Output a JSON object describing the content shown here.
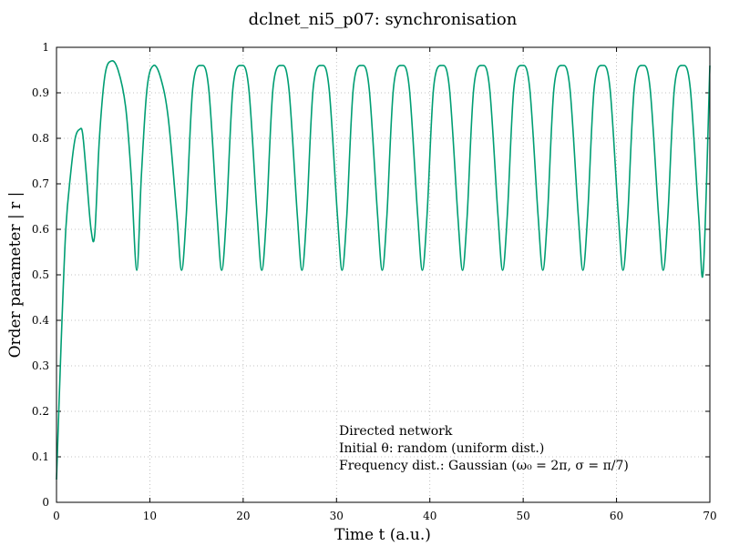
{
  "chart_data": {
    "type": "line",
    "title": "dclnet_ni5_p07: synchronisation",
    "xlabel": "Time t (a.u.)",
    "ylabel": "Order parameter  | r |",
    "xlim": [
      0,
      70
    ],
    "ylim": [
      0,
      1
    ],
    "xticks": [
      0,
      10,
      20,
      30,
      40,
      50,
      60,
      70
    ],
    "yticks": [
      0,
      0.1,
      0.2,
      0.3,
      0.4,
      0.5,
      0.6,
      0.7,
      0.8,
      0.9,
      1
    ],
    "grid": true,
    "line_color": "#009e73",
    "series": [
      {
        "x": [
          0,
          0.5,
          1,
          1.5,
          2,
          2.5,
          2.8,
          3.2,
          3.7,
          4.1,
          4.6,
          5.2,
          5.9,
          6.6,
          7.4,
          8.0,
          8.6,
          9.1,
          9.7,
          10.4,
          11.2,
          12.0,
          12.9,
          13.4,
          13.9,
          14.6,
          15.5,
          16.3,
          17.2,
          17.7,
          18.2,
          18.9,
          19.8,
          20.6,
          21.5,
          22.0,
          22.5,
          23.2,
          24.1,
          24.9,
          25.8,
          26.3,
          26.8,
          27.5,
          28.4,
          29.2,
          30.1,
          30.6,
          31.1,
          31.8,
          32.7,
          33.5,
          34.4,
          34.9,
          35.4,
          36.1,
          37.0,
          37.8,
          38.7,
          39.2,
          39.7,
          40.4,
          41.3,
          42.1,
          43.0,
          43.5,
          44.0,
          44.7,
          45.6,
          46.4,
          47.3,
          47.8,
          48.3,
          49.0,
          49.9,
          50.7,
          51.6,
          52.1,
          52.6,
          53.3,
          54.2,
          55.0,
          55.9,
          56.4,
          56.9,
          57.6,
          58.5,
          59.3,
          60.2,
          60.7,
          61.2,
          61.9,
          62.8,
          63.6,
          64.5,
          65.0,
          65.5,
          66.2,
          67.1,
          67.9,
          68.8,
          69.3,
          70
        ],
        "y": [
          0.05,
          0.35,
          0.6,
          0.72,
          0.8,
          0.82,
          0.81,
          0.72,
          0.6,
          0.59,
          0.8,
          0.94,
          0.97,
          0.95,
          0.87,
          0.72,
          0.51,
          0.72,
          0.91,
          0.96,
          0.93,
          0.84,
          0.63,
          0.51,
          0.63,
          0.91,
          0.96,
          0.91,
          0.63,
          0.51,
          0.63,
          0.91,
          0.96,
          0.91,
          0.63,
          0.51,
          0.63,
          0.91,
          0.96,
          0.91,
          0.63,
          0.51,
          0.63,
          0.91,
          0.96,
          0.91,
          0.63,
          0.51,
          0.63,
          0.91,
          0.96,
          0.91,
          0.63,
          0.51,
          0.63,
          0.91,
          0.96,
          0.91,
          0.63,
          0.51,
          0.63,
          0.91,
          0.96,
          0.91,
          0.63,
          0.51,
          0.63,
          0.91,
          0.96,
          0.91,
          0.63,
          0.51,
          0.63,
          0.91,
          0.96,
          0.91,
          0.63,
          0.51,
          0.63,
          0.91,
          0.96,
          0.91,
          0.63,
          0.51,
          0.63,
          0.91,
          0.96,
          0.91,
          0.63,
          0.51,
          0.63,
          0.91,
          0.96,
          0.91,
          0.63,
          0.51,
          0.63,
          0.91,
          0.96,
          0.91,
          0.63,
          0.51,
          0.96
        ]
      }
    ],
    "annotations": [
      "Directed network",
      "Initial θ: random (uniform dist.)",
      "Frequency dist.: Gaussian (ω₀ = 2π, σ = π/7)"
    ]
  }
}
